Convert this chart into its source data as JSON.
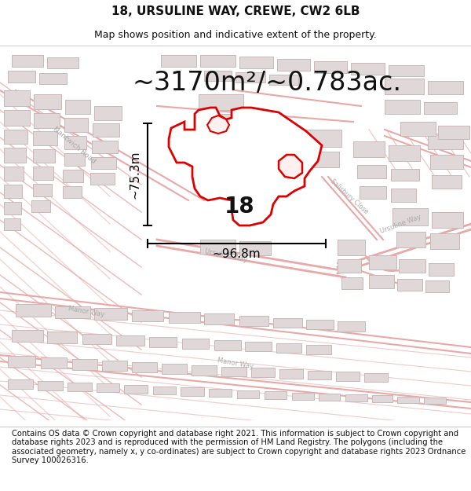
{
  "title": "18, URSULINE WAY, CREWE, CW2 6LB",
  "subtitle": "Map shows position and indicative extent of the property.",
  "area_text": "~3170m²/~0.783ac.",
  "width_label": "~96.8m",
  "height_label": "~75.3m",
  "number_label": "18",
  "footer_text": "Contains OS data © Crown copyright and database right 2021. This information is subject to Crown copyright and database rights 2023 and is reproduced with the permission of HM Land Registry. The polygons (including the associated geometry, namely x, y co-ordinates) are subject to Crown copyright and database rights 2023 Ordnance Survey 100026316.",
  "bg_color": "#ffffff",
  "road_color": "#f0c8c8",
  "road_outline": "#e8a8a8",
  "building_fill": "#e0d8d8",
  "building_edge": "#c8b8b8",
  "highlight_color": "#dd0000",
  "text_color": "#111111",
  "road_label_color": "#aaaaaa",
  "title_fontsize": 11,
  "subtitle_fontsize": 9,
  "area_fontsize": 24,
  "dim_fontsize": 11,
  "number_fontsize": 20,
  "footer_fontsize": 7.2
}
